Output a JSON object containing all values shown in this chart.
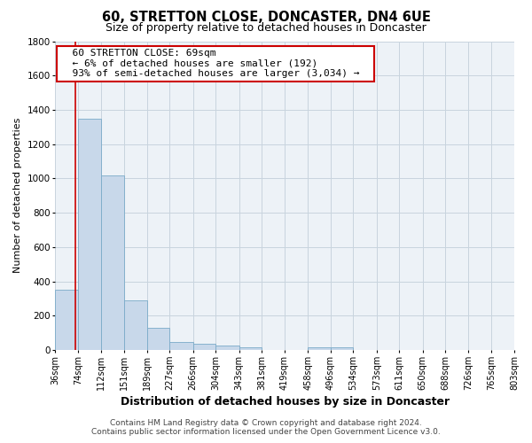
{
  "title": "60, STRETTON CLOSE, DONCASTER, DN4 6UE",
  "subtitle": "Size of property relative to detached houses in Doncaster",
  "xlabel": "Distribution of detached houses by size in Doncaster",
  "ylabel": "Number of detached properties",
  "footer_line1": "Contains HM Land Registry data © Crown copyright and database right 2024.",
  "footer_line2": "Contains public sector information licensed under the Open Government Licence v3.0.",
  "annotation_title": "60 STRETTON CLOSE: 69sqm",
  "annotation_line1": "← 6% of detached houses are smaller (192)",
  "annotation_line2": "93% of semi-detached houses are larger (3,034) →",
  "bar_edges": [
    36,
    74,
    112,
    151,
    189,
    227,
    266,
    304,
    343,
    381,
    419,
    458,
    496,
    534,
    573,
    611,
    650,
    688,
    726,
    765,
    803
  ],
  "bar_heights": [
    350,
    1350,
    1020,
    290,
    130,
    45,
    38,
    25,
    15,
    0,
    0,
    15,
    15,
    0,
    0,
    0,
    0,
    0,
    0,
    0
  ],
  "bar_color": "#c8d8ea",
  "bar_edge_color": "#7aaac8",
  "vline_color": "#cc0000",
  "vline_x": 69,
  "ylim": [
    0,
    1800
  ],
  "yticks": [
    0,
    200,
    400,
    600,
    800,
    1000,
    1200,
    1400,
    1600,
    1800
  ],
  "xtick_labels": [
    "36sqm",
    "74sqm",
    "112sqm",
    "151sqm",
    "189sqm",
    "227sqm",
    "266sqm",
    "304sqm",
    "343sqm",
    "381sqm",
    "419sqm",
    "458sqm",
    "496sqm",
    "534sqm",
    "573sqm",
    "611sqm",
    "650sqm",
    "688sqm",
    "726sqm",
    "765sqm",
    "803sqm"
  ],
  "grid_color": "#c8d4de",
  "bg_color": "#edf2f7",
  "annotation_box_facecolor": "#ffffff",
  "annotation_box_edgecolor": "#cc0000",
  "title_fontsize": 10.5,
  "subtitle_fontsize": 9,
  "axis_label_fontsize": 8,
  "xlabel_fontsize": 9,
  "tick_fontsize": 7,
  "annotation_fontsize": 8,
  "footer_fontsize": 6.5
}
